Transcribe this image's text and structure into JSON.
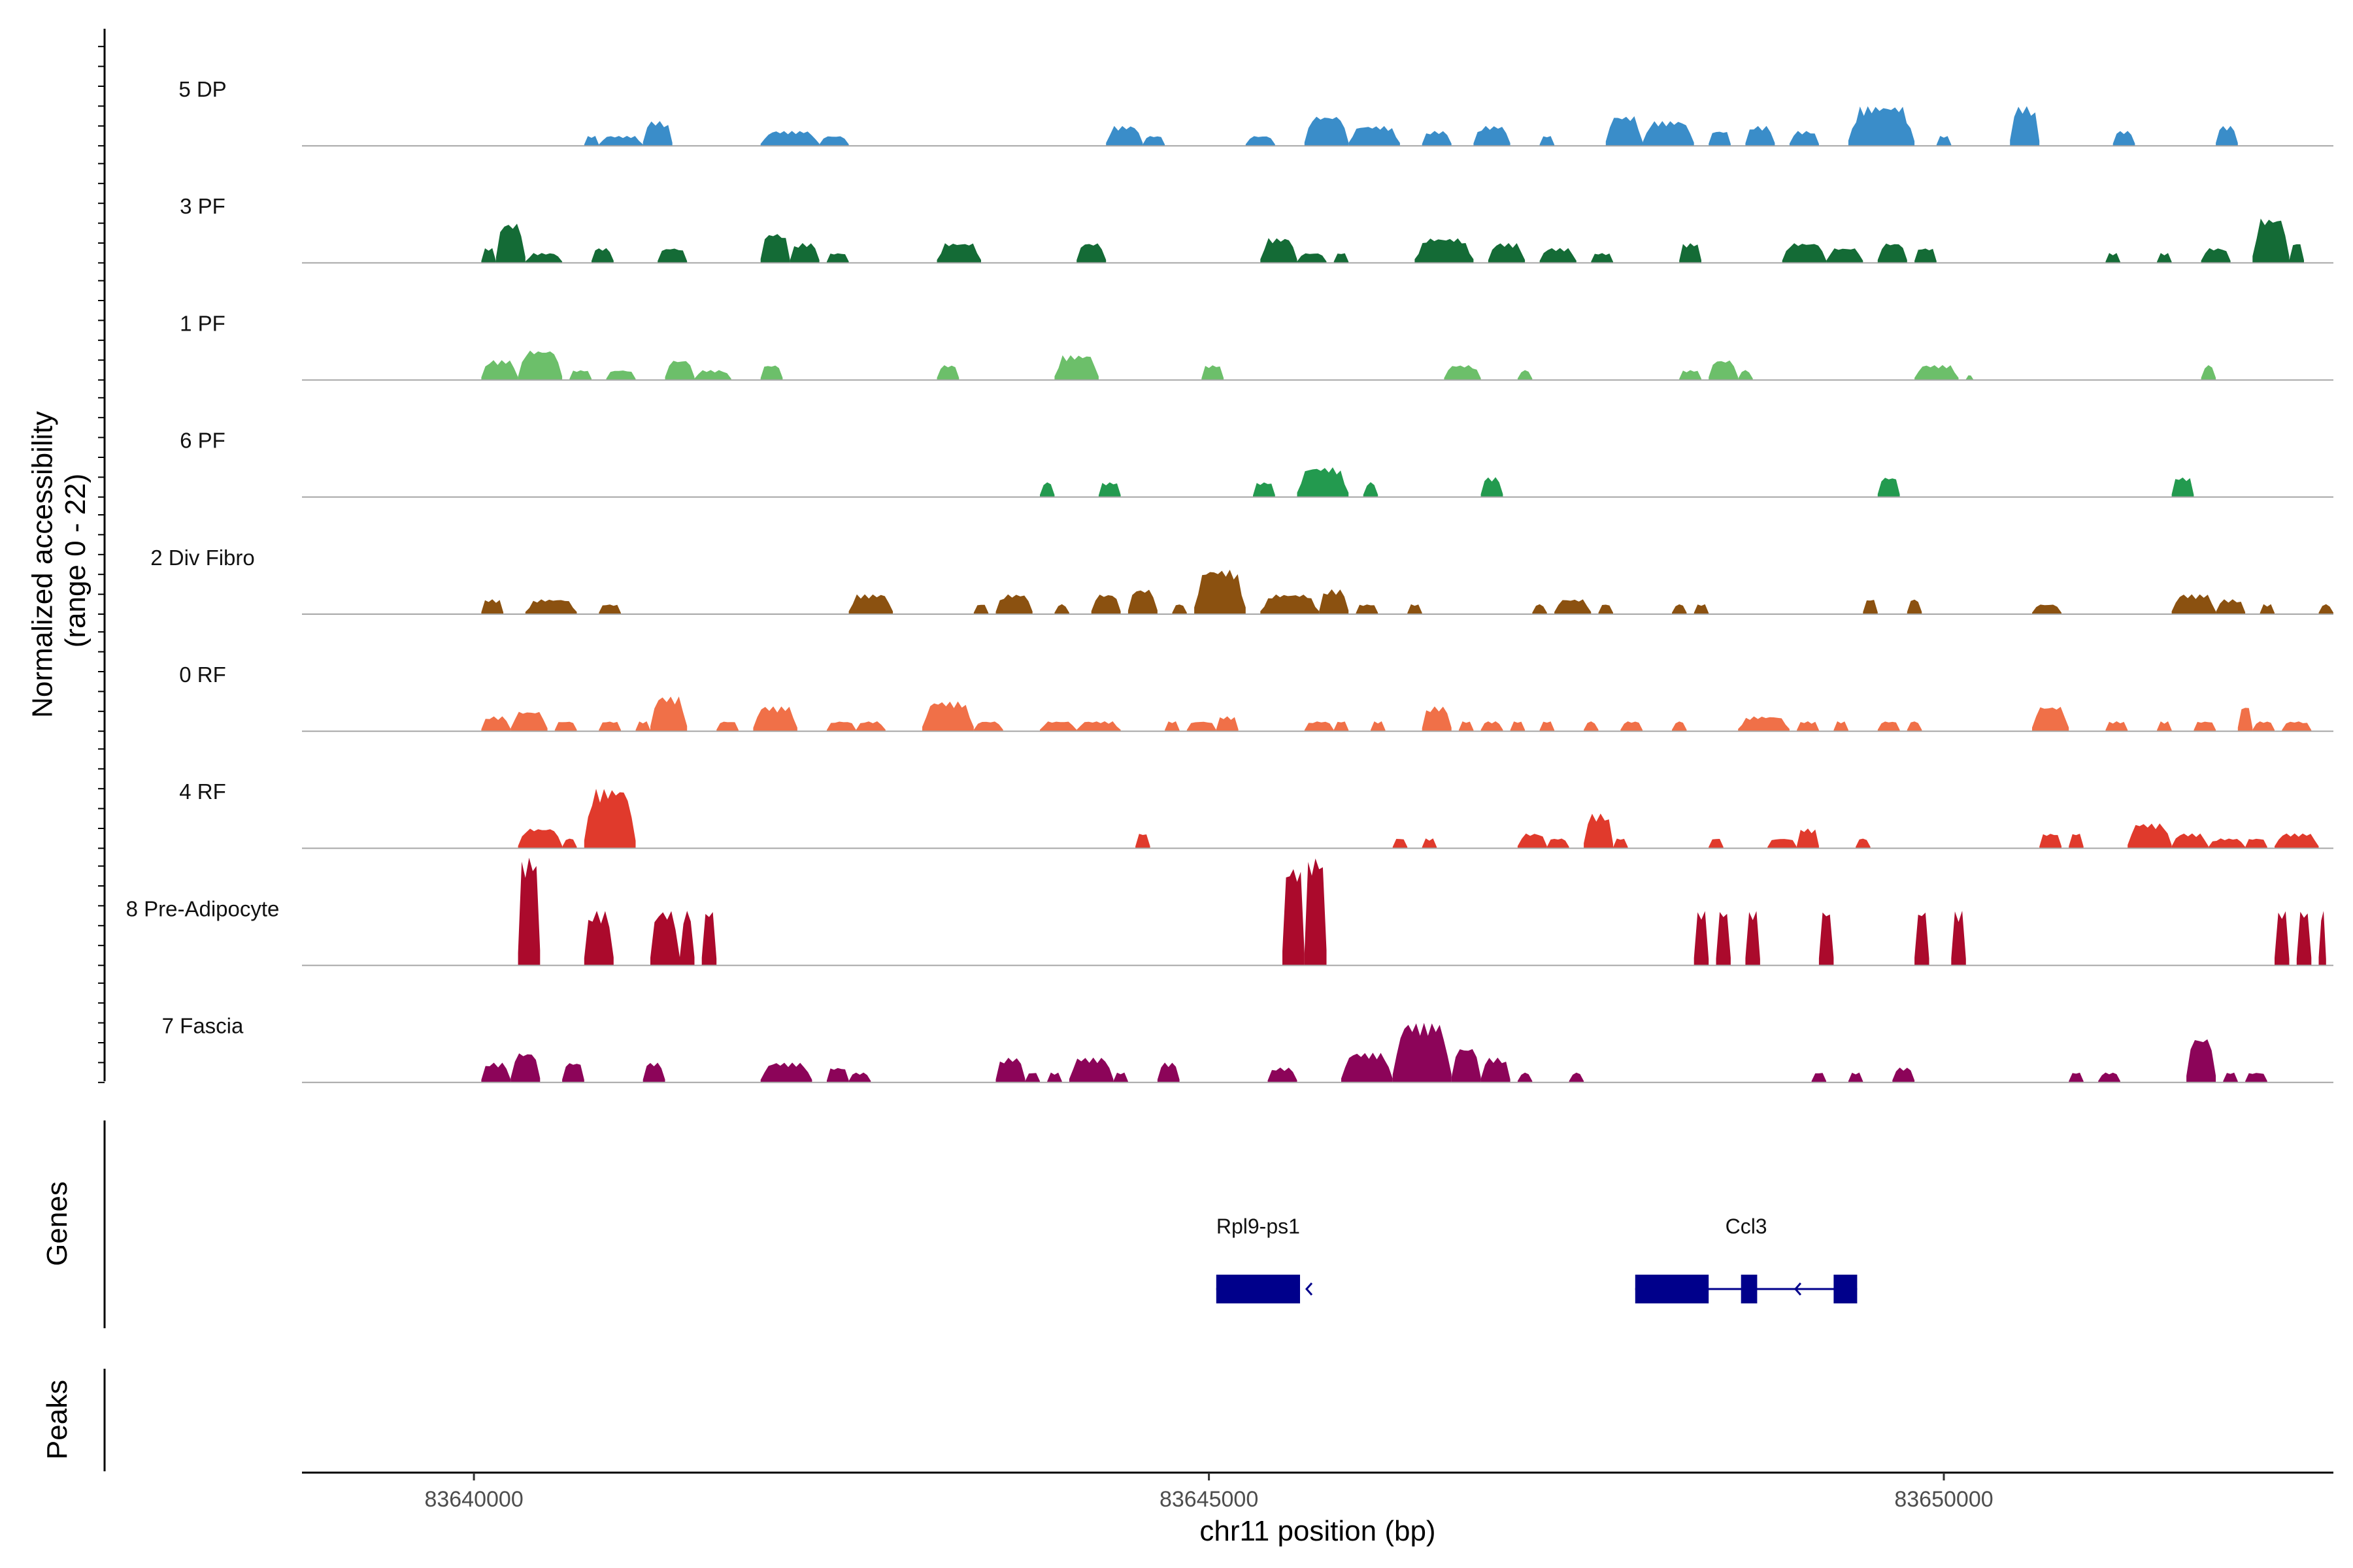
{
  "chart_data": {
    "type": "area",
    "x_axis": {
      "label": "chr11 position (bp)",
      "range": [
        83638830,
        83652650
      ],
      "ticks": [
        83640000,
        83645000,
        83650000
      ]
    },
    "y_axis": {
      "label_line1": "Normalized accessibility",
      "label_line2": "(range 0 - 22)",
      "range": [
        0,
        22
      ]
    },
    "panels": {
      "genes_label": "Genes",
      "peaks_label": "Peaks"
    },
    "tracks": [
      {
        "name": "5 DP",
        "color": "#3a8dc9",
        "peaks": [
          [
            83640750,
            83640850,
            2
          ],
          [
            83640850,
            83641150,
            2
          ],
          [
            83641150,
            83641350,
            5
          ],
          [
            83641950,
            83642350,
            3
          ],
          [
            83642350,
            83642550,
            2
          ],
          [
            83644300,
            83644550,
            4
          ],
          [
            83644550,
            83644700,
            2
          ],
          [
            83645250,
            83645450,
            2
          ],
          [
            83645650,
            83645950,
            6
          ],
          [
            83645950,
            83646300,
            4
          ],
          [
            83646450,
            83646650,
            3
          ],
          [
            83646800,
            83647050,
            4
          ],
          [
            83647250,
            83647350,
            2
          ],
          [
            83647700,
            83647950,
            6
          ],
          [
            83647950,
            83648300,
            5
          ],
          [
            83648400,
            83648550,
            3
          ],
          [
            83648650,
            83648850,
            4
          ],
          [
            83648950,
            83649150,
            3
          ],
          [
            83649350,
            83649800,
            8
          ],
          [
            83649950,
            83650050,
            2
          ],
          [
            83650450,
            83650650,
            8
          ],
          [
            83651150,
            83651300,
            3
          ],
          [
            83651850,
            83652000,
            4
          ]
        ]
      },
      {
        "name": "3 PF",
        "color": "#146b36",
        "peaks": [
          [
            83640050,
            83640150,
            3
          ],
          [
            83640150,
            83640350,
            8
          ],
          [
            83640350,
            83640600,
            2
          ],
          [
            83640800,
            83640950,
            3
          ],
          [
            83641250,
            83641450,
            3
          ],
          [
            83641950,
            83642150,
            6
          ],
          [
            83642150,
            83642350,
            4
          ],
          [
            83642400,
            83642550,
            2
          ],
          [
            83643150,
            83643450,
            4
          ],
          [
            83644100,
            83644300,
            4
          ],
          [
            83645350,
            83645600,
            5
          ],
          [
            83645600,
            83645800,
            2
          ],
          [
            83645850,
            83645950,
            2
          ],
          [
            83646400,
            83646800,
            5
          ],
          [
            83646900,
            83647150,
            4
          ],
          [
            83647250,
            83647500,
            3
          ],
          [
            83647600,
            83647750,
            2
          ],
          [
            83648200,
            83648350,
            4
          ],
          [
            83648900,
            83649200,
            4
          ],
          [
            83649200,
            83649450,
            3
          ],
          [
            83649550,
            83649750,
            4
          ],
          [
            83649800,
            83649950,
            3
          ],
          [
            83651100,
            83651200,
            2
          ],
          [
            83651450,
            83651550,
            2
          ],
          [
            83651750,
            83651950,
            3
          ],
          [
            83652100,
            83652350,
            9
          ],
          [
            83652350,
            83652450,
            4
          ]
        ]
      },
      {
        "name": "1 PF",
        "color": "#6cbf6a",
        "peaks": [
          [
            83640050,
            83640300,
            4
          ],
          [
            83640300,
            83640600,
            6
          ],
          [
            83640650,
            83640800,
            2
          ],
          [
            83640900,
            83641100,
            2
          ],
          [
            83641300,
            83641500,
            4
          ],
          [
            83641500,
            83641750,
            2
          ],
          [
            83641950,
            83642100,
            3
          ],
          [
            83643150,
            83643300,
            3
          ],
          [
            83643950,
            83644250,
            5
          ],
          [
            83644950,
            83645100,
            3
          ],
          [
            83646600,
            83646850,
            3
          ],
          [
            83647100,
            83647200,
            2
          ],
          [
            83648200,
            83648350,
            2
          ],
          [
            83648400,
            83648600,
            4
          ],
          [
            83648600,
            83648700,
            2
          ],
          [
            83649800,
            83650100,
            3
          ],
          [
            83650150,
            83650200,
            1
          ],
          [
            83651750,
            83651850,
            3
          ]
        ]
      },
      {
        "name": "6 PF",
        "color": "#239a4f",
        "peaks": [
          [
            83643850,
            83643950,
            3
          ],
          [
            83644250,
            83644400,
            3
          ],
          [
            83645300,
            83645450,
            3
          ],
          [
            83645600,
            83645950,
            6
          ],
          [
            83646050,
            83646150,
            3
          ],
          [
            83646850,
            83647000,
            4
          ],
          [
            83649550,
            83649700,
            4
          ],
          [
            83651550,
            83651700,
            4
          ]
        ]
      },
      {
        "name": "2 Div Fibro",
        "color": "#8b5110",
        "peaks": [
          [
            83640050,
            83640200,
            3
          ],
          [
            83640350,
            83640700,
            3
          ],
          [
            83640850,
            83641000,
            2
          ],
          [
            83642550,
            83642850,
            4
          ],
          [
            83643400,
            83643500,
            2
          ],
          [
            83643550,
            83643800,
            4
          ],
          [
            83643950,
            83644050,
            2
          ],
          [
            83644200,
            83644400,
            4
          ],
          [
            83644450,
            83644650,
            5
          ],
          [
            83644750,
            83644850,
            2
          ],
          [
            83644900,
            83645250,
            9
          ],
          [
            83645350,
            83645750,
            4
          ],
          [
            83645750,
            83645950,
            5
          ],
          [
            83646000,
            83646150,
            2
          ],
          [
            83646350,
            83646450,
            2
          ],
          [
            83647200,
            83647300,
            2
          ],
          [
            83647350,
            83647600,
            3
          ],
          [
            83647650,
            83647750,
            2
          ],
          [
            83648150,
            83648250,
            2
          ],
          [
            83648300,
            83648400,
            2
          ],
          [
            83649450,
            83649550,
            3
          ],
          [
            83649750,
            83649850,
            3
          ],
          [
            83650600,
            83650800,
            2
          ],
          [
            83651550,
            83651850,
            4
          ],
          [
            83651850,
            83652050,
            3
          ],
          [
            83652150,
            83652250,
            2
          ],
          [
            83652550,
            83652650,
            2
          ]
        ]
      },
      {
        "name": "0 RF",
        "color": "#f07048",
        "peaks": [
          [
            83640050,
            83640250,
            3
          ],
          [
            83640250,
            83640500,
            4
          ],
          [
            83640550,
            83640700,
            2
          ],
          [
            83640850,
            83641000,
            2
          ],
          [
            83641100,
            83641200,
            2
          ],
          [
            83641200,
            83641450,
            7
          ],
          [
            83641650,
            83641800,
            2
          ],
          [
            83641900,
            83642200,
            5
          ],
          [
            83642400,
            83642600,
            2
          ],
          [
            83642600,
            83642800,
            2
          ],
          [
            83643050,
            83643400,
            6
          ],
          [
            83643400,
            83643600,
            2
          ],
          [
            83643850,
            83644100,
            2
          ],
          [
            83644100,
            83644400,
            2
          ],
          [
            83644700,
            83644800,
            2
          ],
          [
            83644850,
            83645050,
            2
          ],
          [
            83645050,
            83645200,
            3
          ],
          [
            83645650,
            83645850,
            2
          ],
          [
            83645850,
            83645950,
            2
          ],
          [
            83646100,
            83646200,
            2
          ],
          [
            83646450,
            83646650,
            5
          ],
          [
            83646700,
            83646800,
            2
          ],
          [
            83646850,
            83647000,
            2
          ],
          [
            83647050,
            83647150,
            2
          ],
          [
            83647250,
            83647350,
            2
          ],
          [
            83647550,
            83647650,
            2
          ],
          [
            83647800,
            83647950,
            2
          ],
          [
            83648150,
            83648250,
            2
          ],
          [
            83648600,
            83648950,
            3
          ],
          [
            83649000,
            83649150,
            2
          ],
          [
            83649250,
            83649350,
            2
          ],
          [
            83649550,
            83649700,
            2
          ],
          [
            83649750,
            83649850,
            2
          ],
          [
            83650600,
            83650850,
            5
          ],
          [
            83651100,
            83651250,
            2
          ],
          [
            83651450,
            83651550,
            2
          ],
          [
            83651700,
            83651850,
            2
          ],
          [
            83652000,
            83652100,
            5
          ],
          [
            83652100,
            83652250,
            2
          ],
          [
            83652300,
            83652500,
            2
          ]
        ]
      },
      {
        "name": "4 RF",
        "color": "#e03a2c",
        "peaks": [
          [
            83640300,
            83640600,
            4
          ],
          [
            83640600,
            83640700,
            2
          ],
          [
            83640750,
            83641100,
            12
          ],
          [
            83644500,
            83644600,
            3
          ],
          [
            83646250,
            83646350,
            2
          ],
          [
            83646450,
            83646550,
            2
          ],
          [
            83647100,
            83647300,
            3
          ],
          [
            83647300,
            83647450,
            2
          ],
          [
            83647550,
            83647750,
            7
          ],
          [
            83647750,
            83647850,
            2
          ],
          [
            83648400,
            83648500,
            2
          ],
          [
            83648800,
            83649000,
            2
          ],
          [
            83649000,
            83649150,
            4
          ],
          [
            83649400,
            83649500,
            2
          ],
          [
            83650650,
            83650800,
            3
          ],
          [
            83650850,
            83650950,
            3
          ],
          [
            83651250,
            83651550,
            5
          ],
          [
            83651550,
            83651800,
            3
          ],
          [
            83651800,
            83652050,
            2
          ],
          [
            83652050,
            83652200,
            2
          ],
          [
            83652250,
            83652550,
            3
          ]
        ]
      },
      {
        "name": "8 Pre-Adipocyte",
        "color": "#ab0a2c",
        "peaks": [
          [
            83640300,
            83640450,
            22
          ],
          [
            83640750,
            83640950,
            11
          ],
          [
            83641200,
            83641400,
            11
          ],
          [
            83641400,
            83641500,
            11
          ],
          [
            83641550,
            83641650,
            11
          ],
          [
            83645500,
            83645650,
            20
          ],
          [
            83645650,
            83645800,
            22
          ],
          [
            83648300,
            83648400,
            11
          ],
          [
            83648450,
            83648550,
            11
          ],
          [
            83648650,
            83648750,
            11
          ],
          [
            83649150,
            83649250,
            11
          ],
          [
            83649800,
            83649900,
            11
          ],
          [
            83650050,
            83650150,
            11
          ],
          [
            83652250,
            83652350,
            11
          ],
          [
            83652400,
            83652500,
            11
          ],
          [
            83652550,
            83652600,
            11
          ]
        ]
      },
      {
        "name": "7 Fascia",
        "color": "#8c0459",
        "peaks": [
          [
            83640050,
            83640250,
            4
          ],
          [
            83640250,
            83640450,
            6
          ],
          [
            83640600,
            83640750,
            4
          ],
          [
            83641150,
            83641300,
            4
          ],
          [
            83641950,
            83642300,
            4
          ],
          [
            83642400,
            83642550,
            3
          ],
          [
            83642550,
            83642700,
            2
          ],
          [
            83643550,
            83643750,
            5
          ],
          [
            83643750,
            83643850,
            2
          ],
          [
            83643900,
            83644000,
            2
          ],
          [
            83644050,
            83644350,
            5
          ],
          [
            83644350,
            83644450,
            2
          ],
          [
            83644650,
            83644800,
            4
          ],
          [
            83645400,
            83645600,
            3
          ],
          [
            83645900,
            83646250,
            6
          ],
          [
            83646250,
            83646650,
            12
          ],
          [
            83646650,
            83646850,
            7
          ],
          [
            83646850,
            83647050,
            5
          ],
          [
            83647100,
            83647200,
            2
          ],
          [
            83647450,
            83647550,
            2
          ],
          [
            83649100,
            83649200,
            2
          ],
          [
            83649350,
            83649450,
            2
          ],
          [
            83649650,
            83649800,
            3
          ],
          [
            83650850,
            83650950,
            2
          ],
          [
            83651050,
            83651200,
            2
          ],
          [
            83651650,
            83651850,
            9
          ],
          [
            83651900,
            83652000,
            2
          ],
          [
            83652050,
            83652200,
            2
          ]
        ]
      }
    ],
    "genes": [
      {
        "name": "Rpl9-ps1",
        "strand": "-",
        "start": 83645050,
        "end": 83645620,
        "exons": [
          [
            83645050,
            83645620
          ]
        ]
      },
      {
        "name": "Ccl3",
        "strand": "-",
        "start": 83647900,
        "end": 83649410,
        "exons": [
          [
            83647900,
            83648400
          ],
          [
            83648620,
            83648730
          ],
          [
            83649250,
            83649410
          ]
        ]
      }
    ]
  }
}
